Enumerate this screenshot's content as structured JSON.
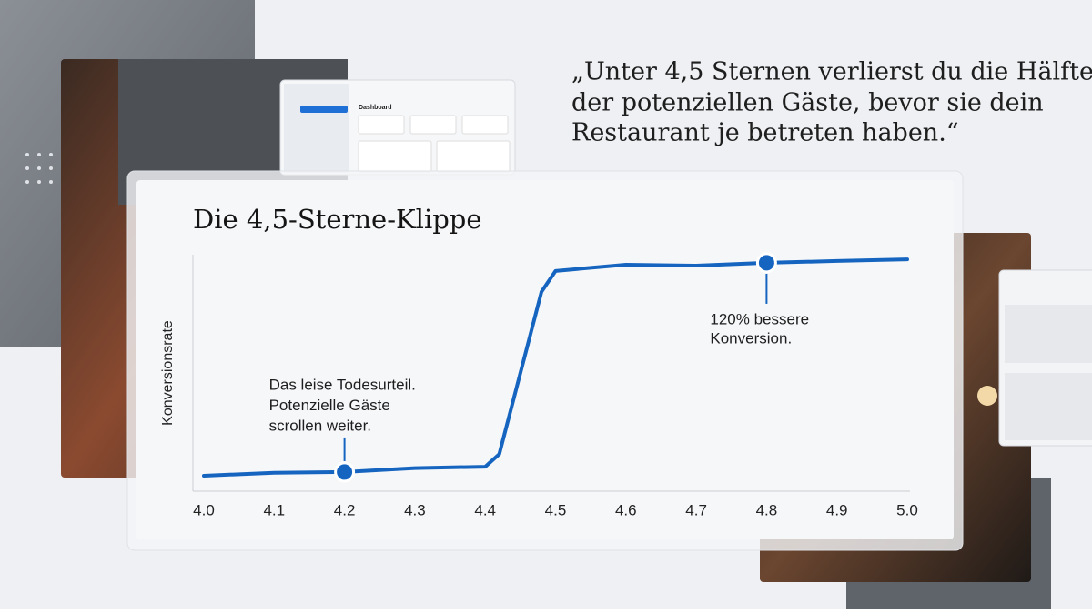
{
  "quote": {
    "lines": [
      "„Unter 4,5 Sternen verlierst du die Hälfte",
      "der potenziellen Gäste, bevor sie dein",
      "Restaurant je betreten haben.“"
    ]
  },
  "mockup": {
    "title": "Dashboard"
  },
  "chart_data": {
    "type": "line",
    "title": "Die 4,5-Sterne-Klippe",
    "y_label": "Konversionsrate",
    "x": [
      4.0,
      4.1,
      4.2,
      4.3,
      4.4,
      4.42,
      4.45,
      4.48,
      4.5,
      4.6,
      4.7,
      4.8,
      4.9,
      5.0
    ],
    "series": [
      {
        "color": "#1565c0",
        "values": [
          4.7,
          6,
          6.3,
          8,
          8.6,
          14,
          49,
          84,
          93,
          95.7,
          95.3,
          96.5,
          97.3,
          98
        ]
      }
    ],
    "xlim": [
      4.0,
      5.0
    ],
    "ylim": [
      0,
      100
    ],
    "xticks": [
      {
        "value": 4.0,
        "label": "4.0"
      },
      4.1,
      4.2,
      4.3,
      4.4,
      4.5,
      4.6,
      4.7,
      4.8,
      4.9,
      {
        "value": 5.0,
        "label": "5.0"
      }
    ],
    "highlights": [
      2,
      11
    ],
    "annotations": [
      {
        "lines": [
          "Das leise Todesurteil.",
          "Potenzielle Gäste",
          "scrollen weiter."
        ]
      },
      {
        "lines": [
          "120% bessere",
          "Konversion."
        ]
      }
    ]
  }
}
